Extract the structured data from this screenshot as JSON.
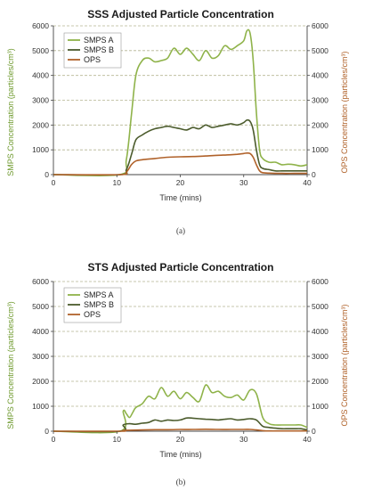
{
  "colors": {
    "smps_a": "#8fb34a",
    "smps_b": "#4b5b2c",
    "ops": "#b0622a",
    "left_axis_label": "#6f9a2f",
    "right_axis_label": "#b0622a",
    "grid": "#b5b592"
  },
  "chart_data": [
    {
      "type": "line",
      "title": "SSS Adjusted Particle Concentration",
      "caption": "(a)",
      "xlabel": "Time (mins)",
      "ylabel": "SMPS Concentration  (particles/cm³)",
      "y2label": "OPS Concentration (particles/cm³)",
      "xlim": [
        0,
        40
      ],
      "ylim": [
        0,
        6000
      ],
      "y2lim": [
        0,
        6000
      ],
      "xticks": [
        0,
        10,
        20,
        30,
        40
      ],
      "yticks": [
        0,
        1000,
        2000,
        3000,
        4000,
        5000,
        6000
      ],
      "grid": "horizontal dashed",
      "legend": "top-left",
      "series": [
        {
          "name": "SMPS A",
          "color_key": "smps_a",
          "x": [
            0,
            10.5,
            11.5,
            12.3,
            13,
            14,
            15,
            16,
            17,
            18,
            19,
            20,
            21,
            22,
            23,
            24,
            25,
            26,
            27,
            28,
            29,
            30,
            30.5,
            31,
            31.5,
            32,
            32.5,
            33,
            34,
            35,
            36,
            37,
            38,
            39,
            40
          ],
          "y": [
            0,
            0,
            600,
            2400,
            4000,
            4600,
            4700,
            4550,
            4600,
            4700,
            5100,
            4850,
            5100,
            4850,
            4600,
            5000,
            4700,
            4800,
            5200,
            5050,
            5200,
            5400,
            5800,
            5700,
            4600,
            2500,
            1000,
            650,
            500,
            500,
            400,
            420,
            400,
            350,
            400
          ]
        },
        {
          "name": "SMPS B",
          "color_key": "smps_b",
          "x": [
            0,
            10.5,
            11.5,
            12.3,
            13,
            14,
            15,
            16,
            17,
            18,
            19,
            20,
            21,
            22,
            23,
            24,
            25,
            26,
            27,
            28,
            29,
            30,
            30.5,
            31,
            31.5,
            32,
            32.5,
            33,
            34,
            35,
            36,
            37,
            38,
            39,
            40
          ],
          "y": [
            0,
            0,
            200,
            800,
            1400,
            1600,
            1750,
            1850,
            1900,
            1950,
            1900,
            1850,
            1800,
            1900,
            1850,
            2000,
            1900,
            1950,
            2000,
            2050,
            2000,
            2100,
            2200,
            2150,
            1800,
            1000,
            400,
            250,
            200,
            150,
            150,
            150,
            150,
            150,
            150
          ]
        },
        {
          "name": "OPS",
          "color_key": "ops",
          "x": [
            0,
            10.5,
            11.5,
            12.3,
            13,
            14,
            16,
            18,
            20,
            22,
            24,
            26,
            28,
            29,
            30,
            30.5,
            31,
            31.5,
            32,
            32.5,
            33,
            34,
            36,
            38,
            40
          ],
          "y": [
            0,
            0,
            100,
            400,
            550,
            600,
            650,
            700,
            720,
            730,
            750,
            780,
            800,
            820,
            850,
            870,
            850,
            700,
            400,
            150,
            80,
            60,
            50,
            50,
            50
          ]
        }
      ]
    },
    {
      "type": "line",
      "title": "STS Adjusted Particle Concentration",
      "caption": "(b)",
      "xlabel": "Time (mins)",
      "ylabel": "SMPS  Concentration  (particles/cm³)",
      "y2label": "OPS Concentration (particles/cm³)",
      "xlim": [
        0,
        40
      ],
      "ylim": [
        0,
        6000
      ],
      "y2lim": [
        0,
        6000
      ],
      "xticks": [
        0,
        10,
        20,
        30,
        40
      ],
      "yticks": [
        0,
        1000,
        2000,
        3000,
        4000,
        5000,
        6000
      ],
      "grid": "horizontal dashed",
      "legend": "top-left",
      "series": [
        {
          "name": "SMPS A",
          "color_key": "smps_a",
          "x": [
            0,
            10.5,
            11,
            11.5,
            12,
            12.5,
            13,
            14,
            15,
            16,
            17,
            18,
            19,
            20,
            21,
            22,
            23,
            24,
            25,
            26,
            27,
            28,
            29,
            30,
            31,
            32,
            33,
            34,
            35,
            36,
            37,
            38,
            39,
            40
          ],
          "y": [
            0,
            0,
            800,
            700,
            550,
            750,
            950,
            1100,
            1400,
            1300,
            1750,
            1400,
            1600,
            1300,
            1550,
            1350,
            1200,
            1850,
            1550,
            1600,
            1400,
            1350,
            1450,
            1250,
            1650,
            1500,
            550,
            300,
            250,
            250,
            250,
            250,
            250,
            150
          ]
        },
        {
          "name": "SMPS B",
          "color_key": "smps_b",
          "x": [
            0,
            10.5,
            11,
            12,
            13,
            14,
            15,
            16,
            17,
            18,
            19,
            20,
            21,
            22,
            23,
            24,
            25,
            26,
            27,
            28,
            29,
            30,
            31,
            32,
            33,
            34,
            35,
            36,
            37,
            38,
            39,
            40
          ],
          "y": [
            0,
            0,
            250,
            300,
            280,
            320,
            350,
            450,
            400,
            450,
            430,
            450,
            530,
            520,
            500,
            480,
            470,
            450,
            480,
            500,
            450,
            470,
            500,
            450,
            200,
            150,
            120,
            100,
            100,
            100,
            100,
            50
          ]
        },
        {
          "name": "OPS",
          "color_key": "ops",
          "x": [
            0,
            10.5,
            11,
            12,
            14,
            16,
            18,
            20,
            22,
            24,
            26,
            28,
            30,
            31,
            32,
            33,
            34,
            36,
            38,
            40
          ],
          "y": [
            0,
            0,
            30,
            40,
            50,
            60,
            60,
            70,
            70,
            80,
            70,
            70,
            70,
            70,
            50,
            20,
            10,
            10,
            10,
            10
          ]
        }
      ]
    }
  ]
}
